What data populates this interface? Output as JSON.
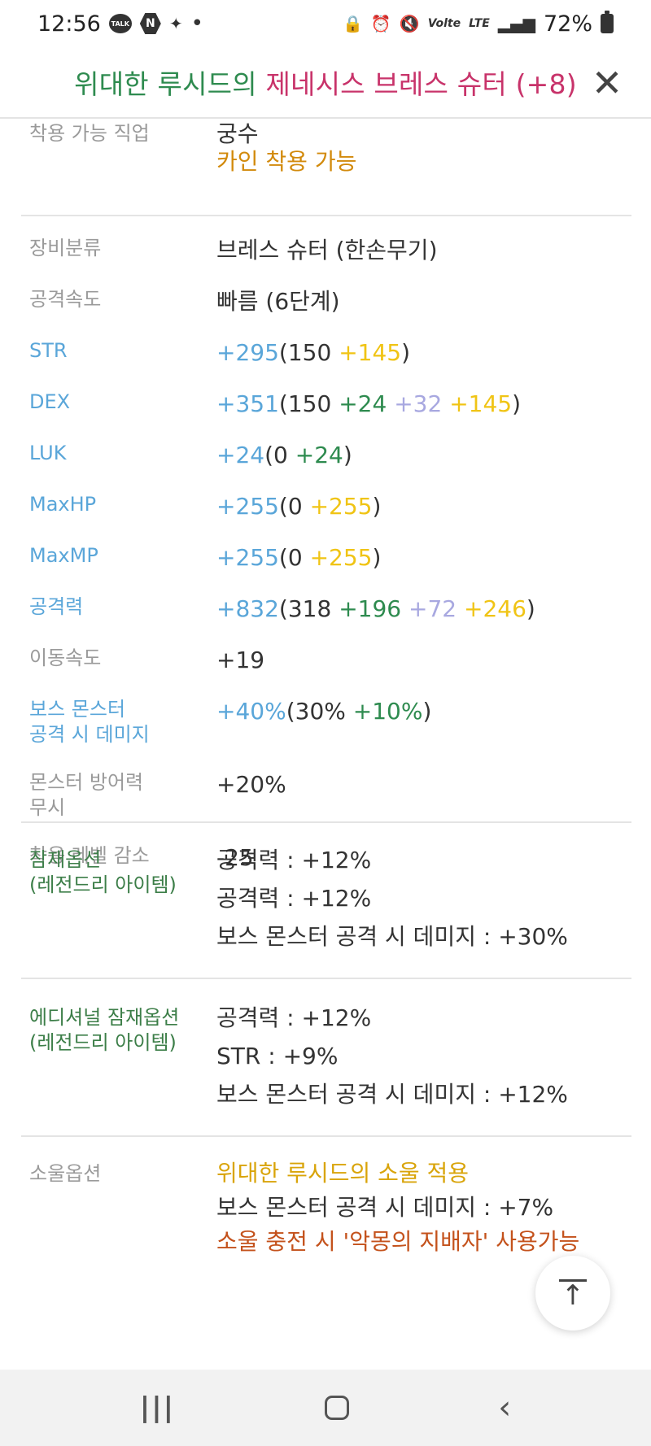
{
  "status_bar": {
    "time": "12:56",
    "talk_label": "TALK",
    "naver_label": "N",
    "star_glyph": "✦",
    "dot": "•",
    "volte_label": "Volte",
    "lte_label": "LTE",
    "battery": "72%"
  },
  "title": {
    "prefix": "위대한 루시드의",
    "item_name": "제네시스 브레스 슈터 (+8)",
    "close_glyph": "✕"
  },
  "job": {
    "label": "착용 가능 직업",
    "value": "궁수",
    "note": "카인 착용 가능"
  },
  "stats": {
    "category": {
      "label": "장비분류",
      "value": "브레스 슈터 (한손무기)"
    },
    "speed": {
      "label": "공격속도",
      "value": "빠름 (6단계)"
    },
    "str": {
      "label": "STR",
      "total": "+295",
      "open": "(",
      "base": "150",
      "star": "+145",
      "close": ")"
    },
    "dex": {
      "label": "DEX",
      "total": "+351",
      "open": "(",
      "base": "150",
      "add": "+24",
      "scroll": "+32",
      "star": "+145",
      "close": ")"
    },
    "luk": {
      "label": "LUK",
      "total": "+24",
      "open": "(",
      "base": "0",
      "add": "+24",
      "close": ")"
    },
    "maxhp": {
      "label": "MaxHP",
      "total": "+255",
      "open": "(",
      "base": "0",
      "star": "+255",
      "close": ")"
    },
    "maxmp": {
      "label": "MaxMP",
      "total": "+255",
      "open": "(",
      "base": "0",
      "star": "+255",
      "close": ")"
    },
    "atk": {
      "label": "공격력",
      "total": "+832",
      "open": "(",
      "base": "318",
      "add": "+196",
      "scroll": "+72",
      "star": "+246",
      "close": ")"
    },
    "move": {
      "label": "이동속도",
      "value": "+19"
    },
    "boss": {
      "label_line1": "보스 몬스터",
      "label_line2": "공격 시 데미지",
      "total": "+40%",
      "open": "(",
      "base": "30%",
      "add": "+10%",
      "close": ")"
    },
    "ignore_def": {
      "label_line1": "몬스터 방어력",
      "label_line2": "무시",
      "value": "+20%"
    },
    "level_reduce": {
      "label": "착용 레벨 감소",
      "value": "-25"
    }
  },
  "potential": {
    "label_line1": "잠재옵션",
    "label_line2": "(레전드리 아이템)",
    "lines": [
      "공격력 : +12%",
      "공격력 : +12%",
      "보스 몬스터 공격 시 데미지 : +30%"
    ]
  },
  "additional": {
    "label_line1": "에디셔널 잠재옵션",
    "label_line2": "(레전드리 아이템)",
    "lines": [
      "공격력 : +12%",
      "STR : +9%",
      "보스 몬스터 공격 시 데미지 : +12%"
    ]
  },
  "soul": {
    "label": "소울옵션",
    "name": "위대한 루시드의 소울 적용",
    "effect": "보스 몬스터 공격 시 데미지 : +7%",
    "skill": "소울 충전 시 '악몽의 지배자' 사용가능"
  },
  "nav": {
    "recent_glyph": "|||",
    "back_glyph": "‹"
  },
  "scroll_top_glyph": "↑",
  "colors": {
    "title_green": "#2e8b4f",
    "title_pink": "#c8336a",
    "stat_blue": "#5aa6d9",
    "stat_green": "#2e8b4f",
    "stat_purple": "#a8a8e0",
    "stat_yellow": "#f0c415",
    "soul_gold": "#d9a40a",
    "soul_rust": "#c4521c"
  }
}
